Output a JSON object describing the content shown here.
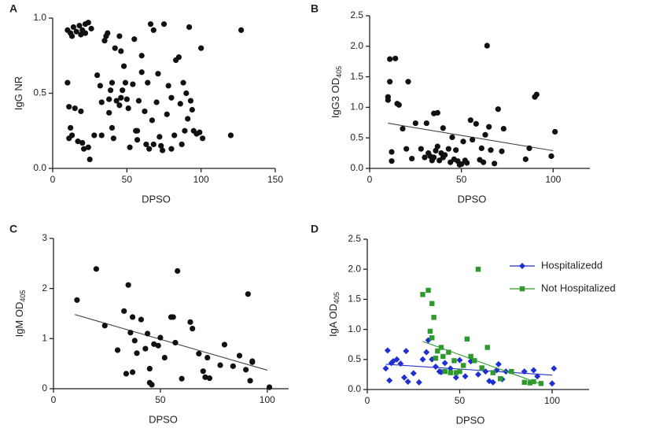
{
  "chart_data": [
    {
      "panel_label": "A",
      "type": "scatter",
      "xlabel": "DPSO",
      "ylabel": "IgG NR",
      "xlim": [
        0,
        150
      ],
      "ylim": [
        0,
        1.0
      ],
      "xticks": [
        0,
        50,
        100,
        150
      ],
      "yticks": [
        {
          "value": 0,
          "label": "0.0"
        },
        {
          "value": 0.5,
          "label": "0.5"
        },
        {
          "value": 1.0,
          "label": "1.0"
        }
      ],
      "series": [
        {
          "color": "#111111",
          "marker": "circle",
          "x": [
            10,
            12,
            14,
            16,
            18,
            20,
            22,
            24,
            19,
            13,
            22,
            26,
            10,
            11,
            12,
            11,
            13,
            15,
            17,
            20,
            21,
            25,
            19,
            24,
            30,
            32,
            33,
            35,
            36,
            37,
            38,
            39,
            40,
            40,
            42,
            41,
            43,
            45,
            46,
            47,
            48,
            49,
            45,
            46,
            50,
            51,
            52,
            54,
            55,
            56,
            57,
            58,
            60,
            60,
            62,
            63,
            65,
            64,
            66,
            68,
            67,
            70,
            71,
            72,
            73,
            74,
            75,
            77,
            78,
            80,
            82,
            83,
            85,
            86,
            87,
            88,
            89,
            90,
            91,
            92,
            93,
            94,
            95,
            97,
            99,
            100,
            101,
            120,
            127,
            38,
            28,
            33,
            68,
            80,
            57
          ],
          "y": [
            0.92,
            0.9,
            0.94,
            0.91,
            0.95,
            0.92,
            0.96,
            0.97,
            0.89,
            0.88,
            0.9,
            0.93,
            0.57,
            0.41,
            0.27,
            0.2,
            0.22,
            0.4,
            0.18,
            0.17,
            0.13,
            0.06,
            0.38,
            0.14,
            0.62,
            0.55,
            0.44,
            0.85,
            0.88,
            0.9,
            0.46,
            0.52,
            0.57,
            0.27,
            0.8,
            0.2,
            0.45,
            0.88,
            0.78,
            0.52,
            0.68,
            0.57,
            0.42,
            0.47,
            0.46,
            0.4,
            0.14,
            0.56,
            0.86,
            0.25,
            0.19,
            0.45,
            0.75,
            0.64,
            0.38,
            0.16,
            0.13,
            0.57,
            0.96,
            0.92,
            0.32,
            0.44,
            0.63,
            0.21,
            0.15,
            0.12,
            0.96,
            0.36,
            0.55,
            0.47,
            0.22,
            0.72,
            0.74,
            0.43,
            0.16,
            0.57,
            0.25,
            0.5,
            0.33,
            0.94,
            0.45,
            0.39,
            0.25,
            0.23,
            0.24,
            0.8,
            0.2,
            0.22,
            0.92,
            0.37,
            0.22,
            0.22,
            0.16,
            0.13,
            0.25
          ]
        }
      ]
    },
    {
      "panel_label": "B",
      "type": "scatter",
      "xlabel": "DPSO",
      "ylabel": "IgG3 OD",
      "ylabel_subscript": "405",
      "xlim": [
        0,
        120
      ],
      "ylim": [
        0,
        2.5
      ],
      "xticks": [
        0,
        50,
        100
      ],
      "yticks": [
        {
          "value": 0,
          "label": "0.0"
        },
        {
          "value": 0.5,
          "label": "0.5"
        },
        {
          "value": 1,
          "label": "1.0"
        },
        {
          "value": 1.5,
          "label": "1.5"
        },
        {
          "value": 2,
          "label": "2.0"
        },
        {
          "value": 2.5,
          "label": "2.5"
        }
      ],
      "series": [
        {
          "color": "#111111",
          "marker": "circle",
          "x": [
            10,
            10,
            11,
            11,
            12,
            12,
            14,
            15,
            16,
            18,
            20,
            21,
            23,
            25,
            28,
            30,
            31,
            32,
            33,
            34,
            35,
            35,
            36,
            37,
            37,
            38,
            39,
            40,
            40,
            41,
            43,
            44,
            45,
            46,
            47,
            48,
            49,
            50,
            51,
            52,
            53,
            55,
            56,
            58,
            60,
            61,
            62,
            63,
            64,
            65,
            66,
            68,
            70,
            72,
            73,
            85,
            87,
            90,
            91,
            99,
            101
          ],
          "y": [
            1.17,
            1.12,
            1.42,
            1.79,
            0.27,
            0.12,
            1.8,
            1.06,
            1.04,
            0.65,
            0.32,
            1.42,
            0.16,
            0.74,
            0.32,
            0.18,
            0.74,
            0.25,
            0.2,
            0.13,
            0.18,
            0.9,
            0.29,
            0.36,
            0.91,
            0.13,
            0.25,
            0.66,
            0.18,
            0.22,
            0.32,
            0.1,
            0.51,
            0.15,
            0.3,
            0.12,
            0.06,
            0.07,
            0.44,
            0.13,
            0.09,
            0.79,
            0.47,
            0.73,
            0.14,
            0.33,
            0.1,
            0.55,
            2.01,
            0.68,
            0.3,
            0.08,
            0.97,
            0.28,
            0.65,
            0.15,
            0.33,
            1.17,
            1.21,
            0.2,
            0.6
          ]
        }
      ],
      "trendline": {
        "color": "#444444",
        "x": [
          10,
          100
        ],
        "y": [
          0.74,
          0.29
        ]
      }
    },
    {
      "panel_label": "C",
      "type": "scatter",
      "xlabel": "DPSO",
      "ylabel": "IgM OD",
      "ylabel_subscript": "405",
      "xlim": [
        0,
        110
      ],
      "ylim": [
        0,
        3
      ],
      "xticks": [
        0,
        50,
        100
      ],
      "yticks": [
        0,
        1,
        2,
        3
      ],
      "series": [
        {
          "color": "#111111",
          "marker": "circle",
          "x": [
            11,
            20,
            24,
            30,
            33,
            34,
            35,
            36,
            37,
            37,
            38,
            39,
            41,
            43,
            44,
            45,
            45,
            46,
            47,
            49,
            50,
            52,
            55,
            56,
            57,
            58,
            60,
            64,
            65,
            68,
            70,
            71,
            72,
            73,
            78,
            80,
            84,
            87,
            90,
            91,
            92,
            93,
            93,
            101
          ],
          "y": [
            1.77,
            2.39,
            1.26,
            0.77,
            1.55,
            0.3,
            2.07,
            1.12,
            0.33,
            1.43,
            0.96,
            0.71,
            1.38,
            0.8,
            1.1,
            0.4,
            0.12,
            0.08,
            0.89,
            0.86,
            1.02,
            0.62,
            1.43,
            1.43,
            0.92,
            2.35,
            0.2,
            1.33,
            1.2,
            0.7,
            0.35,
            0.23,
            0.62,
            0.21,
            0.47,
            0.88,
            0.45,
            0.66,
            0.38,
            1.89,
            0.16,
            0.53,
            0.55,
            0.03
          ]
        }
      ],
      "trendline": {
        "color": "#444444",
        "x": [
          10,
          100
        ],
        "y": [
          1.48,
          0.37
        ]
      }
    },
    {
      "panel_label": "D",
      "type": "scatter",
      "xlabel": "DPSO",
      "ylabel": "IgA OD",
      "ylabel_subscript": "405",
      "xlim": [
        0,
        120
      ],
      "ylim": [
        0,
        2.5
      ],
      "xticks": [
        0,
        50,
        100
      ],
      "yticks": [
        {
          "value": 0,
          "label": "0.0"
        },
        {
          "value": 0.5,
          "label": "0.5"
        },
        {
          "value": 1,
          "label": "1.0"
        },
        {
          "value": 1.5,
          "label": "1.5"
        },
        {
          "value": 2,
          "label": "2.0"
        },
        {
          "value": 2.5,
          "label": "2.5"
        }
      ],
      "series": [
        {
          "name": "Hospitalizedd",
          "color": "#1f2fd0",
          "marker": "diamond",
          "x": [
            10,
            11,
            12,
            13,
            14,
            16,
            18,
            20,
            21,
            22,
            25,
            28,
            30,
            32,
            33,
            35,
            37,
            39,
            40,
            42,
            45,
            48,
            50,
            53,
            56,
            60,
            64,
            66,
            68,
            70,
            71,
            73,
            75,
            85,
            90,
            92,
            100,
            101
          ],
          "y": [
            0.35,
            0.65,
            0.15,
            0.44,
            0.47,
            0.5,
            0.43,
            0.2,
            0.64,
            0.13,
            0.27,
            0.12,
            0.5,
            0.62,
            0.82,
            0.5,
            0.38,
            0.3,
            0.29,
            0.44,
            0.35,
            0.2,
            0.49,
            0.22,
            0.47,
            0.25,
            0.3,
            0.14,
            0.12,
            0.32,
            0.42,
            0.17,
            0.3,
            0.3,
            0.32,
            0.22,
            0.1,
            0.35
          ],
          "trendline": {
            "x": [
              10,
              100
            ],
            "y": [
              0.42,
              0.24
            ]
          }
        },
        {
          "name": "Not Hospitalized",
          "color": "#2e9a2e",
          "marker": "square",
          "x": [
            30,
            33,
            34,
            35,
            35,
            36,
            37,
            38,
            40,
            41,
            42,
            44,
            45,
            47,
            48,
            50,
            52,
            54,
            56,
            58,
            60,
            62,
            65,
            68,
            72,
            78,
            85,
            88,
            90,
            94
          ],
          "y": [
            1.58,
            1.65,
            0.97,
            1.43,
            0.86,
            1.2,
            0.52,
            0.64,
            0.7,
            0.55,
            0.3,
            0.62,
            0.28,
            0.48,
            0.28,
            0.3,
            0.4,
            0.84,
            0.55,
            0.48,
            2.0,
            0.36,
            0.7,
            0.28,
            0.18,
            0.3,
            0.12,
            0.11,
            0.13,
            0.1
          ],
          "trendline": {
            "x": [
              30,
              95
            ],
            "y": [
              0.8,
              0.08
            ]
          }
        }
      ]
    }
  ]
}
